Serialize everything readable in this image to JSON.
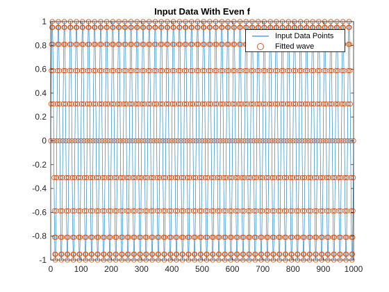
{
  "chart_data": {
    "type": "line",
    "title": "Input Data With Even f",
    "xlabel": "",
    "ylabel": "",
    "xlim": [
      0,
      1000
    ],
    "ylim": [
      -1,
      1
    ],
    "xticks": [
      0,
      100,
      200,
      300,
      400,
      500,
      600,
      700,
      800,
      900,
      1000
    ],
    "yticks": [
      -1,
      -0.8,
      -0.6,
      -0.4,
      -0.2,
      0,
      0.2,
      0.4,
      0.6,
      0.8,
      1
    ],
    "grid": false,
    "legend_position": "top-right",
    "signal": {
      "function": "sin",
      "cycles_over_range": 50,
      "points_per_cycle": 20,
      "sample_count": 1001
    },
    "series": [
      {
        "name": "Input Data Points",
        "style": "line",
        "color": "#0072BD"
      },
      {
        "name": "Fitted wave",
        "style": "circle-markers",
        "color": "#D95319"
      }
    ],
    "legend": [
      "Input Data Points",
      "Fitted wave"
    ]
  }
}
